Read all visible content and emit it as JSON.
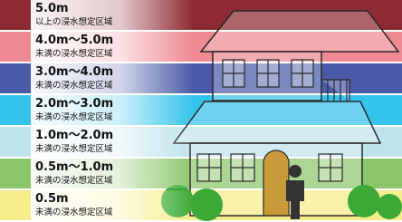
{
  "legend": {
    "items": [
      {
        "depth": "5.0m",
        "note": "以上の浸水想定区域",
        "color": "#8e2a33"
      },
      {
        "depth": "4.0m～5.0m",
        "note": "未満の浸水想定区域",
        "color": "#ef8a93"
      },
      {
        "depth": "3.0m～4.0m",
        "note": "未満の浸水想定区域",
        "color": "#4a5aa8"
      },
      {
        "depth": "2.0m～3.0m",
        "note": "未満の浸水想定区域",
        "color": "#35c3ec"
      },
      {
        "depth": "1.0m～2.0m",
        "note": "未満の浸水想定区域",
        "color": "#bfe3ec"
      },
      {
        "depth": "0.5m～1.0m",
        "note": "未満の浸水想定区域",
        "color": "#8cc66a"
      },
      {
        "depth": "0.5m",
        "note": "未満の浸水想定区域",
        "color": "#f7ec8a"
      }
    ]
  }
}
